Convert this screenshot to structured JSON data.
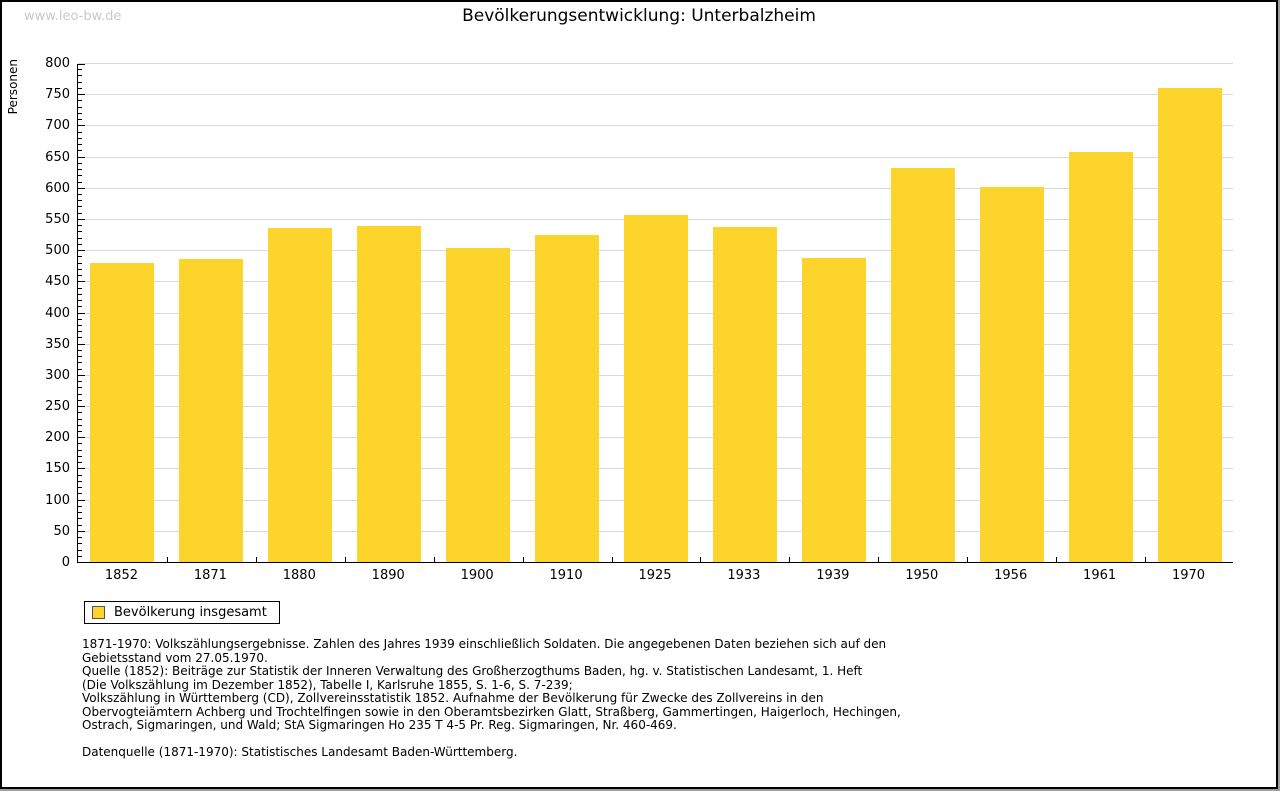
{
  "watermark": "www.leo-bw.de",
  "title": "Bevölkerungsentwicklung: Unterbalzheim",
  "colors": {
    "bar": "#FCD42C",
    "grid": "#d9d9d9",
    "axis": "#000000",
    "watermark": "#c9c9c9"
  },
  "chart_data": {
    "type": "bar",
    "title": "Bevölkerungsentwicklung: Unterbalzheim",
    "xlabel": "",
    "ylabel": "Personen",
    "categories": [
      "1852",
      "1871",
      "1880",
      "1890",
      "1900",
      "1910",
      "1925",
      "1933",
      "1939",
      "1950",
      "1956",
      "1961",
      "1970"
    ],
    "values": [
      480,
      486,
      536,
      538,
      503,
      524,
      556,
      537,
      488,
      631,
      601,
      657,
      760
    ],
    "ylim": [
      0,
      800
    ],
    "ytick_step": 50,
    "y_minor_tick_step": 10,
    "grid": true,
    "legend_position": "bottom-left"
  },
  "legend": {
    "label": "Bevölkerung insgesamt"
  },
  "notes": {
    "lines": [
      "1871-1970: Volkszählungsergebnisse. Zahlen des Jahres 1939 einschließlich Soldaten. Die angegebenen Daten beziehen sich auf den",
      "Gebietsstand vom 27.05.1970.",
      "Quelle (1852): Beiträge zur Statistik der Inneren Verwaltung des Großherzogthums Baden, hg. v. Statistischen Landesamt, 1. Heft",
      "(Die Volkszählung im Dezember 1852), Tabelle I, Karlsruhe 1855, S. 1-6, S. 7-239;",
      "Volkszählung in Württemberg (CD), Zollvereinsstatistik 1852. Aufnahme der Bevölkerung für Zwecke des Zollvereins in den",
      "Obervogteiämtern Achberg und Trochtelfingen sowie in den Oberamtsbezirken Glatt, Straßberg, Gammertingen, Haigerloch, Hechingen,",
      "Ostrach, Sigmaringen, und Wald; StA Sigmaringen Ho 235 T 4-5 Pr. Reg. Sigmaringen, Nr. 460-469."
    ],
    "datasource": "Datenquelle (1871-1970): Statistisches Landesamt Baden-Württemberg."
  }
}
